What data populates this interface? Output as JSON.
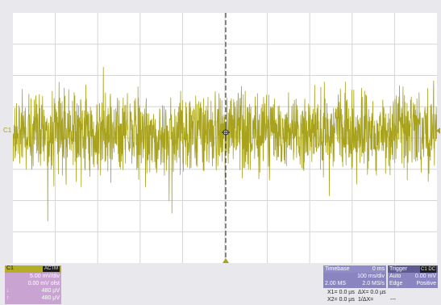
{
  "channel": {
    "marker": "C1",
    "name": "C1",
    "badge": "ACTM",
    "vdiv": "5.00 mV/div",
    "offset": "0.00 mV ofst",
    "row3_label": "↓",
    "row3_value": "480 µV",
    "row4_label": "↑",
    "row4_value": "480 µV",
    "trace_color": "#a8a21c"
  },
  "timebase": {
    "title": "Timebase",
    "delay": "0 ms",
    "tdiv": "100 ms/div",
    "samples": "2.00 MS",
    "rate": "2.0 MS/s"
  },
  "trigger": {
    "title": "Trigger",
    "badge": "C1 DC",
    "mode": "Auto",
    "level": "0.00 mV",
    "type": "Edge",
    "slope": "Positive"
  },
  "cursors": {
    "x1_label": "X1=",
    "x1_value": "0.0 µs",
    "dx_label": "ΔX=",
    "dx_value": "0.0 µs",
    "x2_label": "X2=",
    "x2_value": "0.0 µs",
    "inv_dx_label": "1/ΔX=",
    "inv_dx_value": "---"
  },
  "colors": {
    "background": "#ffffff",
    "grid": "#d6d6d6",
    "panel_purple": "#8a84c1",
    "channel_purple": "#c9a4d2"
  }
}
